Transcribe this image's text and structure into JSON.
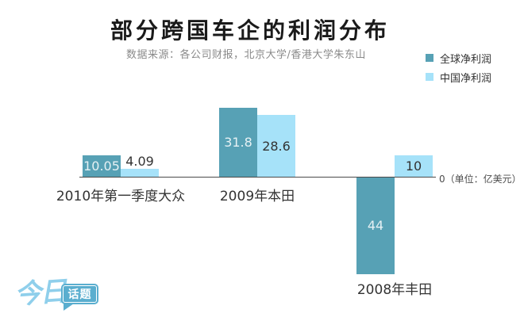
{
  "header": {
    "title": "部分跨国车企的利润分布",
    "subtitle": "数据来源：各公司财报，北京大学/香港大学朱东山"
  },
  "legend": {
    "items": [
      {
        "label": "全球净利润",
        "color": "#57A1B5"
      },
      {
        "label": "中国净利润",
        "color": "#A6E2F9"
      }
    ]
  },
  "axis": {
    "zero_label": "0（单位：亿美元）"
  },
  "logo": {
    "script_text": "今日",
    "bubble_text": "话题"
  },
  "chart_data": {
    "type": "bar",
    "title": "部分跨国车企的利润分布",
    "unit": "亿美元",
    "categories": [
      "2010年第一季度大众",
      "2009年本田",
      "2008年丰田"
    ],
    "series": [
      {
        "name": "全球净利润",
        "color": "#57A1B5",
        "values": [
          10.05,
          31.8,
          -44
        ]
      },
      {
        "name": "中国净利润",
        "color": "#A6E2F9",
        "values": [
          4.09,
          28.6,
          10
        ]
      }
    ],
    "value_labels": [
      [
        "10.05",
        "4.09"
      ],
      [
        "31.8",
        "28.6"
      ],
      [
        "44",
        "10"
      ]
    ],
    "baseline": 0,
    "orientation": "vertical",
    "grid": false,
    "legend_position": "top-right"
  }
}
